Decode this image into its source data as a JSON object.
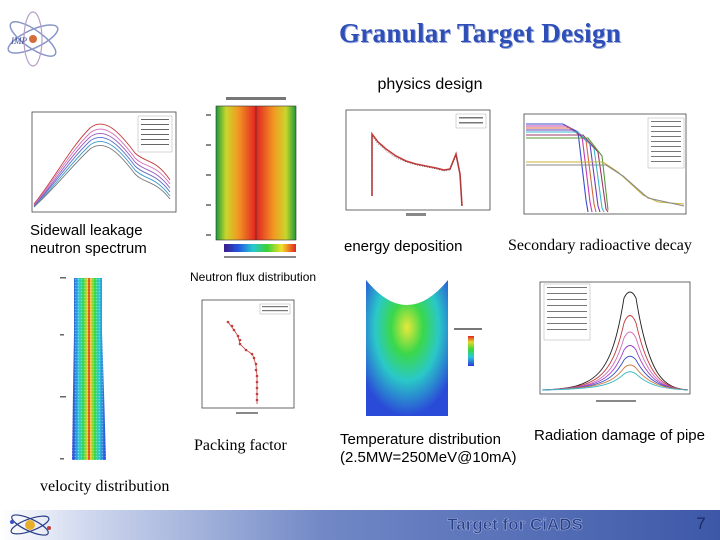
{
  "slide": {
    "title": "Granular Target Design",
    "subtitle": "physics design",
    "footer_text": "Target for CiADS",
    "page_number": "7",
    "title_color": "#2f4fb8",
    "footer_color": "#3d58a8"
  },
  "captions": {
    "sidewall_line1": "Sidewall leakage",
    "sidewall_line2": "neutron spectrum",
    "energy_deposition": "energy deposition",
    "secondary_decay": "Secondary radioactive decay",
    "neutron_flux": "Neutron flux distribution",
    "packing_factor": "Packing factor",
    "temperature_line1": "Temperature distribution",
    "temperature_line2": "(2.5MW=250MeV@10mA)",
    "radiation_damage": "Radiation damage of pipe",
    "velocity": "velocity distribution"
  },
  "icons": {
    "logo": "atom-logo-icon",
    "footer_decor": "atom-orbit-icon"
  }
}
